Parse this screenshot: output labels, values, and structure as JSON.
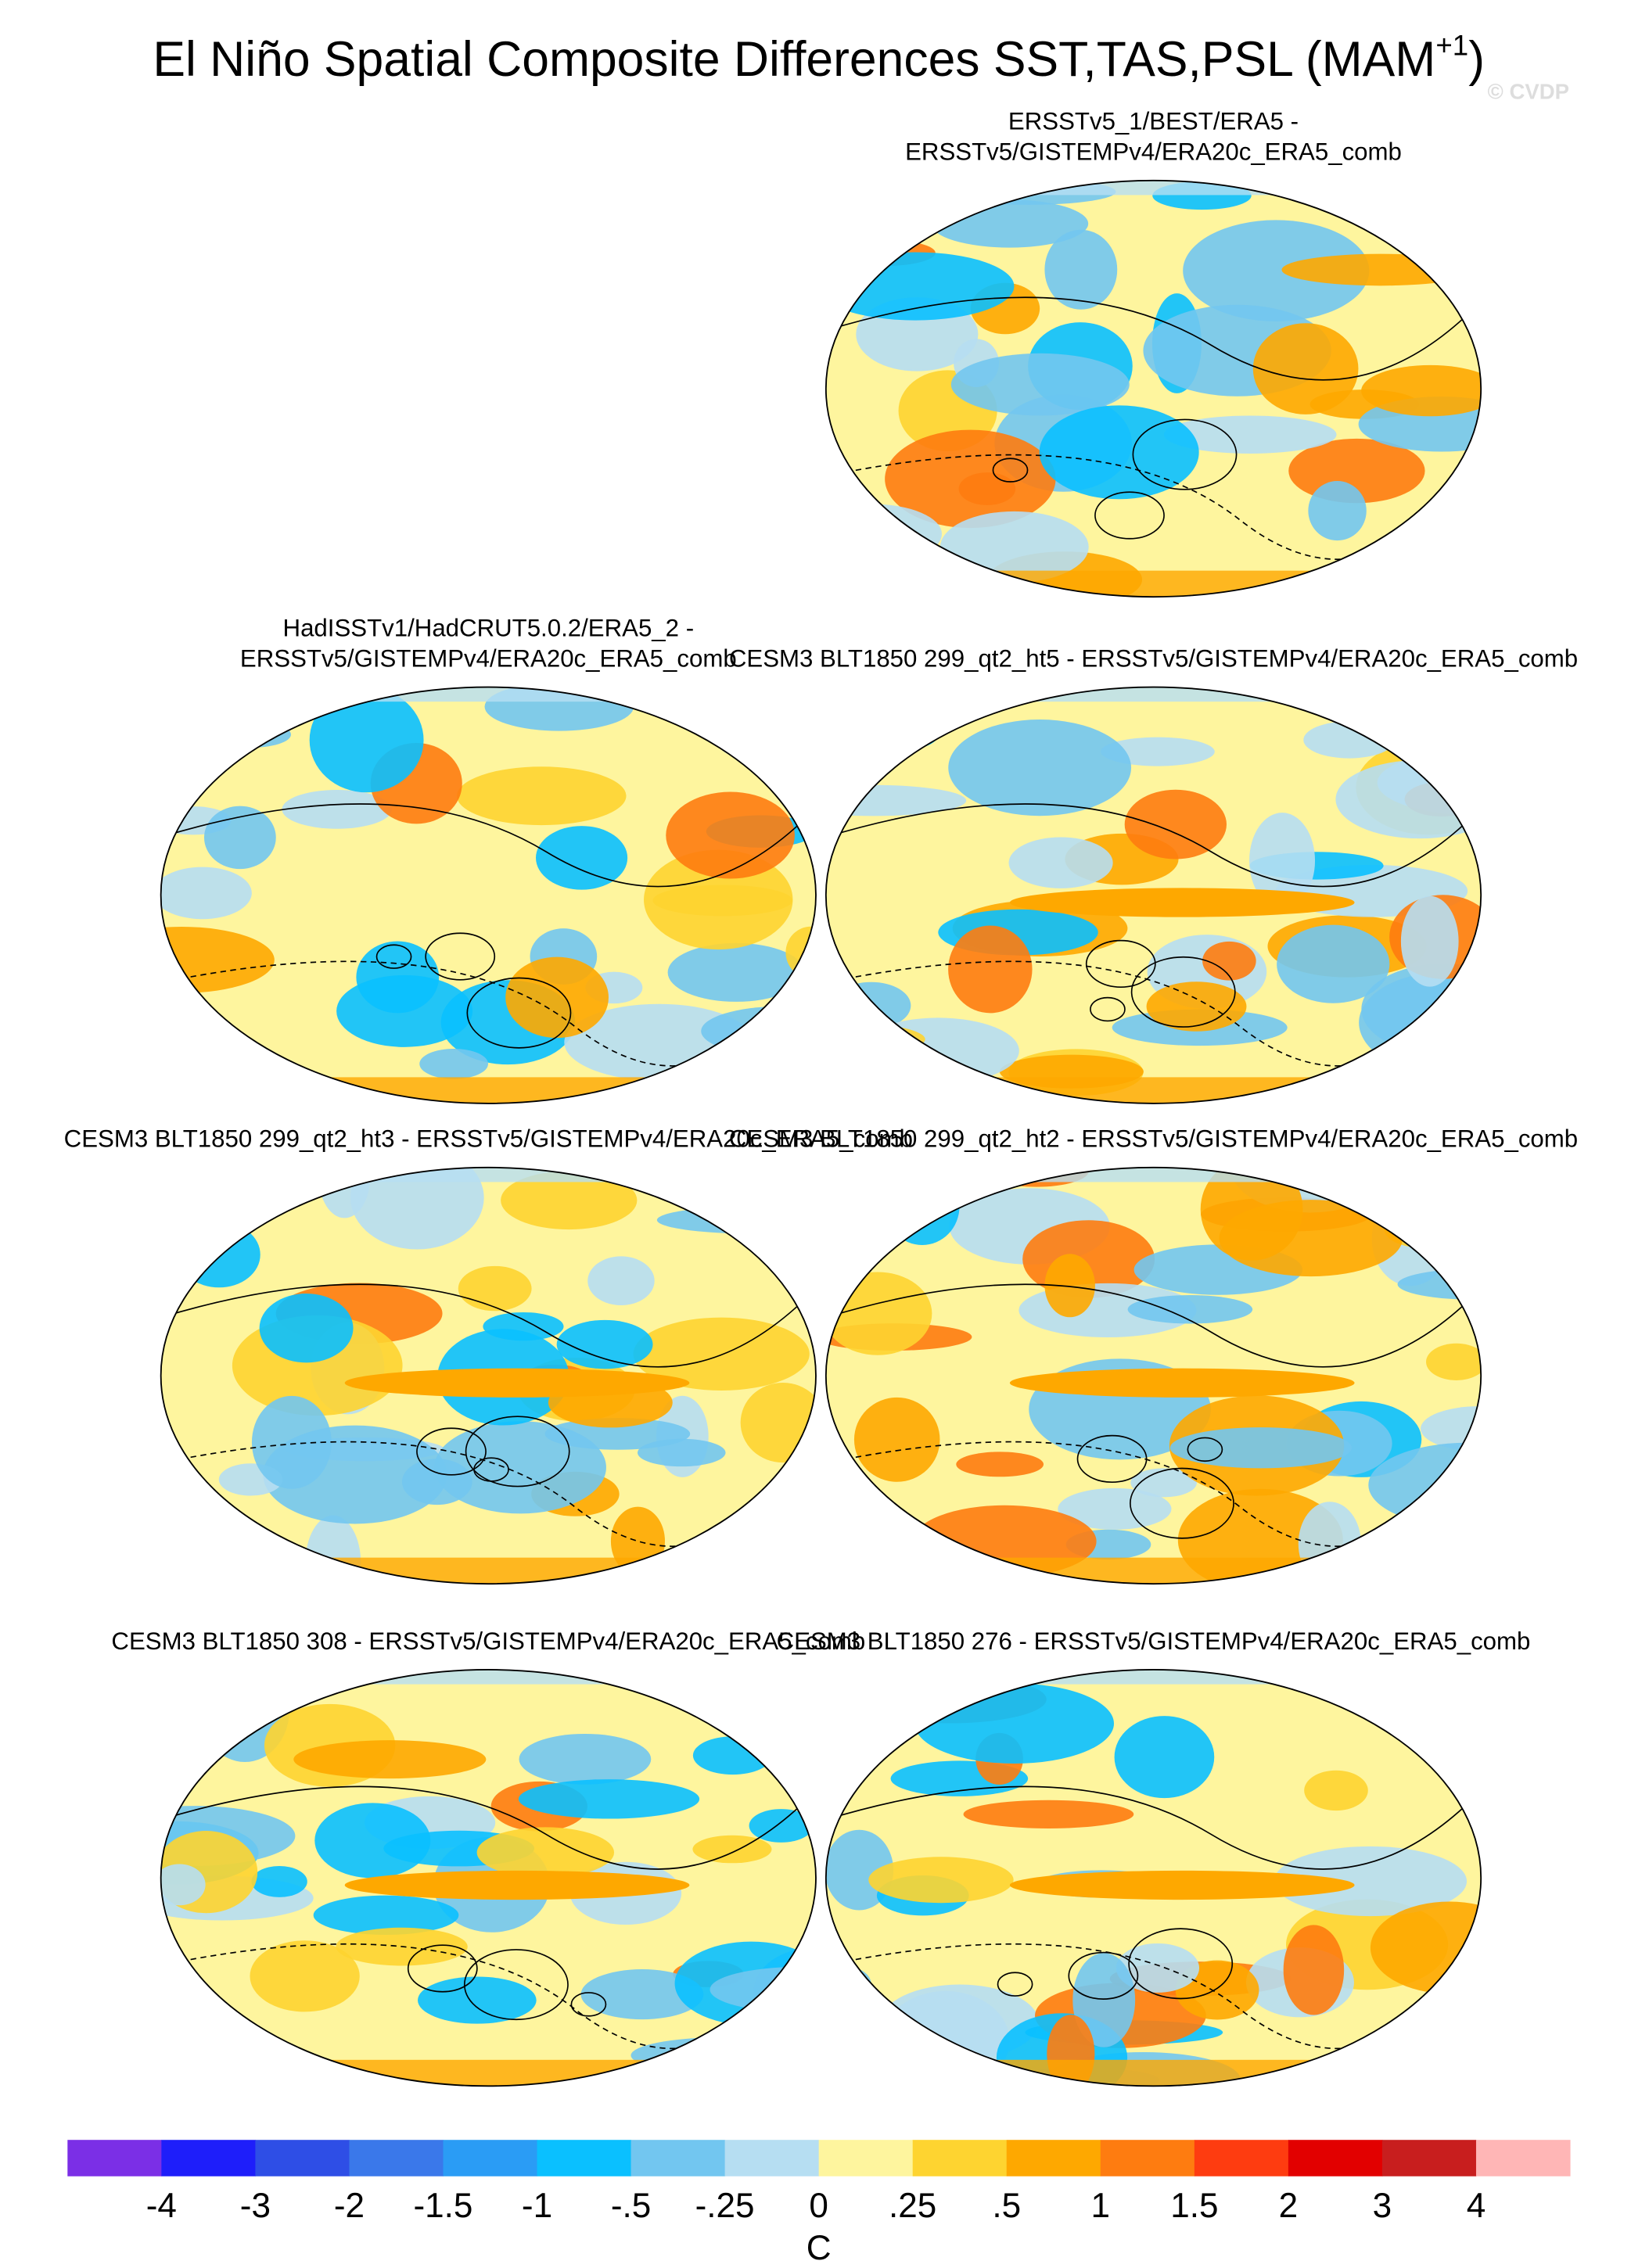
{
  "chart_data": {
    "type": "map-panels",
    "title": "El Niño Spatial Composite Differences SST,TAS,PSL (MAM",
    "title_superscript": "+1",
    "title_end": ")",
    "watermark": "© CVDP",
    "panels": [
      {
        "title": [
          "ERSSTv5_1/BEST/ERA5 -",
          "ERSSTv5/GISTEMPv4/ERA20c_ERA5_comb"
        ]
      },
      {
        "title": [
          "HadISSTv1/HadCRUT5.0.2/ERA5_2 -",
          "ERSSTv5/GISTEMPv4/ERA20c_ERA5_comb"
        ]
      },
      {
        "title": [
          "CESM3 BLT1850 299_qt2_ht5 - ERSSTv5/GISTEMPv4/ERA20c_ERA5_comb"
        ]
      },
      {
        "title": [
          "CESM3 BLT1850 299_qt2_ht3 - ERSSTv5/GISTEMPv4/ERA20c_ERA5_comb"
        ]
      },
      {
        "title": [
          "CESM3 BLT1850 299_qt2_ht2 - ERSSTv5/GISTEMPv4/ERA20c_ERA5_comb"
        ]
      },
      {
        "title": [
          "CESM3 BLT1850 308 - ERSSTv5/GISTEMPv4/ERA20c_ERA5_comb"
        ]
      },
      {
        "title": [
          "CESM3 BLT1850 276 - ERSSTv5/GISTEMPv4/ERA20c_ERA5_comb"
        ]
      }
    ],
    "colorbar": {
      "label": "C",
      "colors": [
        "#7b2fe6",
        "#1e1efa",
        "#2e4ee6",
        "#3a78ea",
        "#2a9cf5",
        "#0ac0ff",
        "#72c6f0",
        "#b6def2",
        "#fef59e",
        "#fed430",
        "#fea800",
        "#fe7c10",
        "#fe3c10",
        "#e20000",
        "#c81e1e",
        "#ffb6b6"
      ],
      "ticks": [
        -4,
        -3,
        -2,
        {
          "value": -1.5,
          "label": "-1.5"
        },
        -1,
        {
          "value": -0.5,
          "label": "-.5"
        },
        {
          "value": -0.25,
          "label": "-.25"
        },
        0,
        {
          "value": 0.25,
          "label": ".25"
        },
        {
          "value": 0.5,
          "label": ".5"
        },
        1,
        1.5,
        2,
        3,
        4
      ]
    }
  }
}
